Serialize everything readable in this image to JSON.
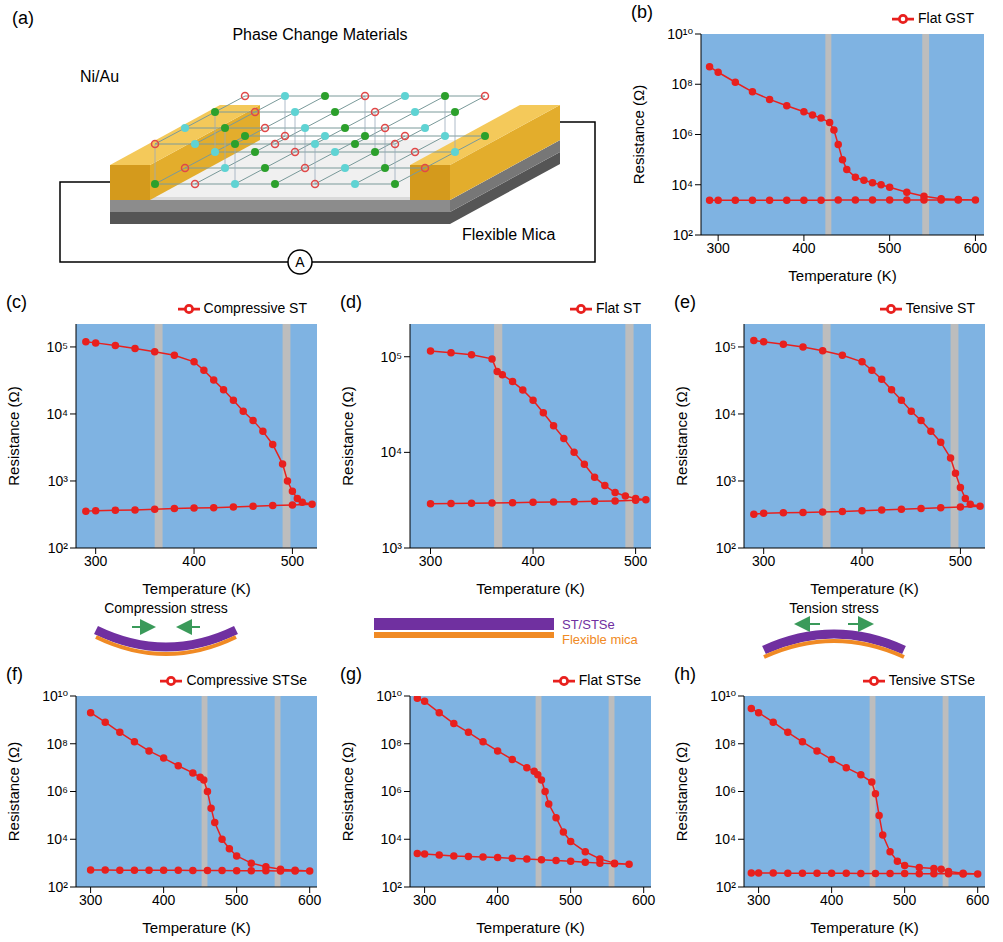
{
  "schematic": {
    "panel_label": "(a)",
    "electrode_label": "Ni/Au",
    "film_label": "Phase Change Materials",
    "substrate_label": "Flexible Mica",
    "meter_label": "A"
  },
  "stress_diagrams": [
    {
      "panel": "(f)",
      "label": "Compression stress",
      "shape": "compressive"
    },
    {
      "panel": "(g)",
      "shape": "flat",
      "layer_labels": [
        "ST/STSe",
        "Flexible mica"
      ]
    },
    {
      "panel": "(h)",
      "label": "Tension stress",
      "shape": "tensile"
    }
  ],
  "chart_data": [
    {
      "panel_label": "(b)",
      "type": "line",
      "log": "y",
      "grid": false,
      "legend": "top right",
      "x_label": "Temperature (K)",
      "y_label": "Resistance (Ω)",
      "xlim": [
        280,
        610
      ],
      "xticks": [
        300,
        400,
        500,
        600
      ],
      "ylim": [
        100.0,
        10000000000.0
      ],
      "yticks": [
        {
          "value": 100.0,
          "label": "10²"
        },
        {
          "value": 10000.0,
          "label": "10⁴"
        },
        {
          "value": 1000000.0,
          "label": "10⁶"
        },
        {
          "value": 100000000.0,
          "label": "10⁸"
        },
        {
          "value": 10000000000.0,
          "label": "10¹⁰"
        }
      ],
      "bands": [
        [
          425,
          432
        ],
        [
          538,
          546
        ]
      ],
      "x": [
        290,
        300,
        320,
        340,
        360,
        380,
        400,
        410,
        420,
        430,
        435,
        440,
        445,
        450,
        460,
        470,
        480,
        490,
        500,
        520,
        540,
        560,
        580,
        600,
        580,
        560,
        540,
        520,
        500,
        480,
        460,
        440,
        420,
        400,
        380,
        360,
        340,
        320,
        300,
        290
      ],
      "series": [
        {
          "name": "Flat GST",
          "color": "#e8201e",
          "marker": "circle",
          "values": [
            500000000.0,
            300000000.0,
            120000000.0,
            50000000.0,
            25000000.0,
            14000000.0,
            8000000.0,
            6000000.0,
            4500000.0,
            3000000.0,
            1500000.0,
            400000.0,
            100000.0,
            40000.0,
            20000.0,
            15000.0,
            12000.0,
            10000.0,
            8000.0,
            5000.0,
            3500.0,
            2800.0,
            2600.0,
            2500.0,
            2500,
            2500,
            2500,
            2500,
            2450,
            2450,
            2450,
            2450,
            2400,
            2400,
            2400,
            2400,
            2400,
            2400,
            2400,
            2400
          ]
        }
      ]
    },
    {
      "panel_label": "(c)",
      "type": "line",
      "log": "y",
      "grid": false,
      "legend": "top right",
      "x_label": "Temperature (K)",
      "y_label": "Resistance (Ω)",
      "xlim": [
        280,
        525
      ],
      "xticks": [
        300,
        400,
        500
      ],
      "ylim": [
        100.0,
        220000.0
      ],
      "yticks": [
        {
          "value": 100.0,
          "label": "10²"
        },
        {
          "value": 1000.0,
          "label": "10³"
        },
        {
          "value": 10000.0,
          "label": "10⁴"
        },
        {
          "value": 100000.0,
          "label": "10⁵"
        }
      ],
      "bands": [
        [
          360,
          368
        ],
        [
          490,
          498
        ]
      ],
      "x": [
        290,
        300,
        320,
        340,
        360,
        380,
        400,
        410,
        420,
        430,
        440,
        450,
        460,
        470,
        480,
        490,
        495,
        500,
        505,
        510,
        520,
        500,
        480,
        460,
        440,
        420,
        400,
        380,
        360,
        340,
        320,
        300,
        290
      ],
      "series": [
        {
          "name": "Compressive ST",
          "color": "#e8201e",
          "marker": "circle",
          "values": [
            120000.0,
            115000.0,
            105000.0,
            95000.0,
            85000.0,
            75000.0,
            60000.0,
            45000.0,
            32000.0,
            23000.0,
            16000.0,
            11000.0,
            8000.0,
            5500.0,
            3500.0,
            1800.0,
            1000.0,
            700,
            550,
            480,
            450,
            440,
            430,
            420,
            410,
            400,
            395,
            390,
            380,
            370,
            365,
            360,
            355
          ]
        }
      ]
    },
    {
      "panel_label": "(d)",
      "type": "line",
      "log": "y",
      "grid": false,
      "legend": "top right",
      "x_label": "Temperature (K)",
      "y_label": "Resistance (Ω)",
      "xlim": [
        280,
        515
      ],
      "xticks": [
        300,
        400,
        500
      ],
      "ylim": [
        1000.0,
        220000.0
      ],
      "yticks": [
        {
          "value": 1000.0,
          "label": "10³"
        },
        {
          "value": 10000.0,
          "label": "10⁴"
        },
        {
          "value": 100000.0,
          "label": "10⁵"
        }
      ],
      "bands": [
        [
          362,
          370
        ],
        [
          490,
          498
        ]
      ],
      "x": [
        300,
        320,
        340,
        360,
        365,
        370,
        380,
        390,
        400,
        410,
        420,
        430,
        440,
        450,
        460,
        470,
        480,
        490,
        500,
        510,
        500,
        480,
        460,
        440,
        420,
        400,
        380,
        360,
        340,
        320,
        300
      ],
      "series": [
        {
          "name": "Flat ST",
          "color": "#e8201e",
          "marker": "circle",
          "values": [
            115000.0,
            110000.0,
            105000.0,
            95000.0,
            70000.0,
            65000.0,
            55000.0,
            45000.0,
            35000.0,
            26000.0,
            19000.0,
            14000.0,
            10000.0,
            7500.0,
            5500.0,
            4500.0,
            3800.0,
            3500.0,
            3300.0,
            3200.0,
            3150,
            3100,
            3080,
            3050,
            3020,
            3000,
            2980,
            2960,
            2940,
            2920,
            2900
          ]
        }
      ]
    },
    {
      "panel_label": "(e)",
      "type": "line",
      "log": "y",
      "grid": false,
      "legend": "top right",
      "x_label": "Temperature (K)",
      "y_label": "Resistance (Ω)",
      "xlim": [
        280,
        525
      ],
      "xticks": [
        300,
        400,
        500
      ],
      "ylim": [
        100.0,
        220000.0
      ],
      "yticks": [
        {
          "value": 100.0,
          "label": "10²"
        },
        {
          "value": 1000.0,
          "label": "10³"
        },
        {
          "value": 10000.0,
          "label": "10⁴"
        },
        {
          "value": 100000.0,
          "label": "10⁵"
        }
      ],
      "bands": [
        [
          360,
          368
        ],
        [
          490,
          498
        ]
      ],
      "x": [
        290,
        300,
        320,
        340,
        360,
        380,
        400,
        410,
        420,
        430,
        440,
        450,
        460,
        470,
        480,
        490,
        495,
        500,
        505,
        510,
        520,
        500,
        480,
        460,
        440,
        420,
        400,
        380,
        360,
        340,
        320,
        300,
        290
      ],
      "series": [
        {
          "name": "Tensive ST",
          "color": "#e8201e",
          "marker": "circle",
          "values": [
            125000.0,
            120000.0,
            110000.0,
            100000.0,
            88000.0,
            75000.0,
            60000.0,
            45000.0,
            33000.0,
            23000.0,
            16000.0,
            11000.0,
            8000.0,
            5500.0,
            3800.0,
            2200.0,
            1300.0,
            800,
            550,
            450,
            420,
            410,
            400,
            390,
            380,
            370,
            360,
            350,
            345,
            340,
            335,
            330,
            320
          ]
        }
      ]
    },
    {
      "panel_label": "(f)",
      "type": "line",
      "log": "y",
      "grid": false,
      "legend": "top right",
      "x_label": "Temperature (K)",
      "y_label": "Resistance (Ω)",
      "xlim": [
        280,
        610
      ],
      "xticks": [
        300,
        400,
        500,
        600
      ],
      "ylim": [
        100.0,
        10000000000.0
      ],
      "yticks": [
        {
          "value": 100.0,
          "label": "10²"
        },
        {
          "value": 10000.0,
          "label": "10⁴"
        },
        {
          "value": 1000000.0,
          "label": "10⁶"
        },
        {
          "value": 100000000.0,
          "label": "10⁸"
        },
        {
          "value": 10000000000.0,
          "label": "10¹⁰"
        }
      ],
      "bands": [
        [
          452,
          460
        ],
        [
          552,
          560
        ]
      ],
      "x": [
        300,
        320,
        340,
        360,
        380,
        400,
        420,
        440,
        450,
        455,
        460,
        465,
        470,
        480,
        490,
        500,
        520,
        540,
        560,
        580,
        600,
        580,
        560,
        540,
        520,
        500,
        480,
        460,
        440,
        420,
        400,
        380,
        360,
        340,
        320,
        300
      ],
      "series": [
        {
          "name": "Compressive STSe",
          "color": "#e8201e",
          "marker": "circle",
          "values": [
            2000000000.0,
            800000000.0,
            300000000.0,
            120000000.0,
            50000000.0,
            25000000.0,
            12000000.0,
            6000000.0,
            4000000.0,
            3000000.0,
            1000000.0,
            200000.0,
            50000.0,
            10000.0,
            4000.0,
            2000.0,
            1000.0,
            700,
            550,
            500,
            470,
            470,
            470,
            480,
            480,
            480,
            490,
            490,
            490,
            500,
            500,
            500,
            500,
            500,
            510,
            510
          ]
        }
      ]
    },
    {
      "panel_label": "(g)",
      "type": "line",
      "log": "y",
      "grid": false,
      "legend": "top right",
      "x_label": "Temperature (K)",
      "y_label": "Resistance (Ω)",
      "xlim": [
        280,
        610
      ],
      "xticks": [
        300,
        400,
        500,
        600
      ],
      "ylim": [
        100.0,
        10000000000.0
      ],
      "yticks": [
        {
          "value": 100.0,
          "label": "10²"
        },
        {
          "value": 10000.0,
          "label": "10⁴"
        },
        {
          "value": 1000000.0,
          "label": "10⁶"
        },
        {
          "value": 100000000.0,
          "label": "10⁸"
        },
        {
          "value": 10000000000.0,
          "label": "10¹⁰"
        }
      ],
      "bands": [
        [
          452,
          460
        ],
        [
          552,
          560
        ]
      ],
      "x": [
        290,
        300,
        320,
        340,
        360,
        380,
        400,
        420,
        440,
        450,
        455,
        460,
        465,
        470,
        480,
        490,
        500,
        520,
        540,
        560,
        580,
        560,
        540,
        520,
        500,
        480,
        460,
        440,
        420,
        400,
        380,
        360,
        340,
        320,
        300,
        290
      ],
      "series": [
        {
          "name": "Flat STSe",
          "color": "#e8201e",
          "marker": "circle",
          "values": [
            8000000000.0,
            6000000000.0,
            2000000000.0,
            700000000.0,
            300000000.0,
            120000000.0,
            50000000.0,
            22000000.0,
            10000000.0,
            7000000.0,
            5000000.0,
            3000000.0,
            1000000.0,
            300000.0,
            80000.0,
            20000.0,
            8000.0,
            3000.0,
            1500.0,
            1000.0,
            900,
            950,
            1000,
            1100,
            1200,
            1300,
            1400,
            1500,
            1600,
            1700,
            1800,
            1900,
            2000,
            2200,
            2400,
            2500
          ]
        }
      ]
    },
    {
      "panel_label": "(h)",
      "type": "line",
      "log": "y",
      "grid": false,
      "legend": "top right",
      "x_label": "Temperature (K)",
      "y_label": "Resistance (Ω)",
      "xlim": [
        280,
        610
      ],
      "xticks": [
        300,
        400,
        500,
        600
      ],
      "ylim": [
        100.0,
        10000000000.0
      ],
      "yticks": [
        {
          "value": 100.0,
          "label": "10²"
        },
        {
          "value": 10000.0,
          "label": "10⁴"
        },
        {
          "value": 1000000.0,
          "label": "10⁶"
        },
        {
          "value": 100000000.0,
          "label": "10⁸"
        },
        {
          "value": 10000000000.0,
          "label": "10¹⁰"
        }
      ],
      "bands": [
        [
          452,
          460
        ],
        [
          552,
          560
        ]
      ],
      "x": [
        290,
        300,
        320,
        340,
        360,
        380,
        400,
        420,
        440,
        455,
        460,
        465,
        470,
        480,
        490,
        500,
        520,
        540,
        550,
        560,
        580,
        600,
        580,
        560,
        540,
        520,
        500,
        480,
        460,
        440,
        420,
        400,
        380,
        360,
        340,
        320,
        300,
        290
      ],
      "series": [
        {
          "name": "Tensive STSe",
          "color": "#e8201e",
          "marker": "circle",
          "values": [
            3000000000.0,
            2000000000.0,
            800000000.0,
            300000000.0,
            120000000.0,
            50000000.0,
            22000000.0,
            10000000.0,
            5000000.0,
            2500000.0,
            800000.0,
            100000.0,
            15000.0,
            3000.0,
            1200.0,
            800,
            650,
            600,
            550,
            450,
            380,
            350,
            350,
            355,
            360,
            360,
            365,
            365,
            370,
            370,
            375,
            375,
            380,
            380,
            380,
            385,
            385,
            385
          ]
        }
      ]
    }
  ]
}
